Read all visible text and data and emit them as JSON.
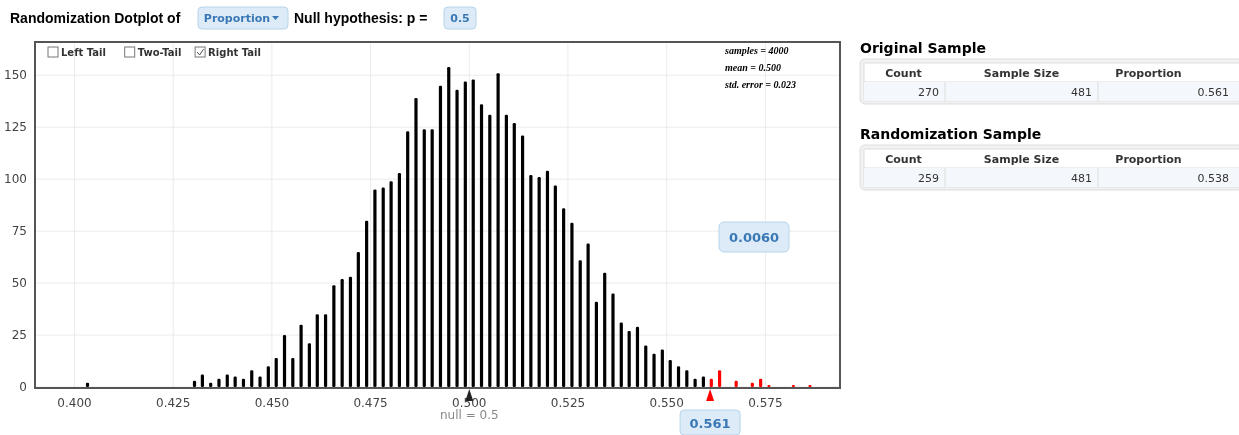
{
  "chart_data": [
    {
      "type": "bar",
      "title": "Randomization Dotplot of",
      "subtitle": "Null hypothesis: p =",
      "x": [
        0.4033,
        0.4304,
        0.4324,
        0.4345,
        0.4366,
        0.4387,
        0.4407,
        0.4428,
        0.4449,
        0.447,
        0.4491,
        0.4511,
        0.4532,
        0.4553,
        0.4574,
        0.4595,
        0.4615,
        0.4636,
        0.4657,
        0.4678,
        0.4699,
        0.4719,
        0.474,
        0.4761,
        0.4782,
        0.4802,
        0.4823,
        0.4844,
        0.4865,
        0.4886,
        0.4906,
        0.4927,
        0.4948,
        0.4969,
        0.499,
        0.501,
        0.5031,
        0.5052,
        0.5073,
        0.5094,
        0.5114,
        0.5135,
        0.5156,
        0.5177,
        0.5198,
        0.5218,
        0.5239,
        0.526,
        0.5281,
        0.5301,
        0.5322,
        0.5343,
        0.5364,
        0.5385,
        0.5405,
        0.5426,
        0.5447,
        0.5468,
        0.5489,
        0.5509,
        0.553,
        0.5551,
        0.5572,
        0.5593,
        0.5613,
        0.5634,
        0.5676,
        0.5717,
        0.5738,
        0.5759,
        0.5821,
        0.5863
      ],
      "series": [
        {
          "color": "#000000",
          "values": [
            2,
            3,
            6,
            2,
            4,
            6,
            5,
            4,
            8,
            5,
            10,
            14,
            25,
            14,
            30,
            21,
            35,
            35,
            49,
            52,
            53,
            65,
            80,
            95,
            96,
            99,
            103,
            123,
            139,
            124,
            124,
            145,
            154,
            143,
            147,
            148,
            136,
            131,
            151,
            131,
            127,
            121,
            102,
            101,
            104,
            97,
            86,
            79,
            61,
            69,
            41,
            55,
            45,
            31,
            27,
            29,
            20,
            16,
            18,
            13,
            10,
            8,
            4,
            5,
            null,
            null,
            null,
            null,
            null,
            null,
            null,
            null
          ]
        },
        {
          "color": "#ff0000",
          "values": [
            null,
            null,
            null,
            null,
            null,
            null,
            null,
            null,
            null,
            null,
            null,
            null,
            null,
            null,
            null,
            null,
            null,
            null,
            null,
            null,
            null,
            null,
            null,
            null,
            null,
            null,
            null,
            null,
            null,
            null,
            null,
            null,
            null,
            null,
            null,
            null,
            null,
            null,
            null,
            null,
            null,
            null,
            null,
            null,
            null,
            null,
            null,
            null,
            null,
            null,
            null,
            null,
            null,
            null,
            null,
            null,
            null,
            null,
            null,
            null,
            null,
            null,
            null,
            null,
            4,
            8,
            3,
            2,
            4,
            1,
            1,
            1
          ]
        }
      ],
      "xlim": [
        0.39,
        0.5939
      ],
      "ylim": [
        0,
        166
      ],
      "xticks": [
        {
          "value": 0.4,
          "label": "0.400"
        },
        {
          "value": 0.425,
          "label": "0.425"
        },
        {
          "value": 0.45,
          "label": "0.450"
        },
        {
          "value": 0.475,
          "label": "0.475"
        },
        {
          "value": 0.5,
          "label": "0.500"
        },
        {
          "value": 0.525,
          "label": "0.525"
        },
        {
          "value": 0.55,
          "label": "0.550"
        },
        {
          "value": 0.575,
          "label": "0.575"
        }
      ],
      "yticks": [
        0,
        25,
        50,
        75,
        100,
        125,
        150
      ],
      "grid": true,
      "annotations": [
        "Proportion",
        "0.5",
        "Left Tail",
        "Two-Tail",
        "Right Tail",
        "samples = 4000",
        "mean = 0.500",
        "std. error = 0.023",
        "0.0060",
        {
          "text": "null = 0.5",
          "x": 0.5,
          "y": 0
        },
        {
          "text": "0.561",
          "x": 0.561,
          "y": 0
        }
      ]
    },
    {
      "type": "other",
      "title": "Original Sample",
      "categories": [
        "Count",
        "Sample Size",
        "Proportion"
      ],
      "annotations": [
        "270",
        "481",
        "0.561"
      ]
    },
    {
      "type": "other",
      "title": "Randomization Sample",
      "categories": [
        "Count",
        "Sample Size",
        "Proportion"
      ],
      "annotations": [
        "259",
        "481",
        "0.538"
      ]
    }
  ]
}
